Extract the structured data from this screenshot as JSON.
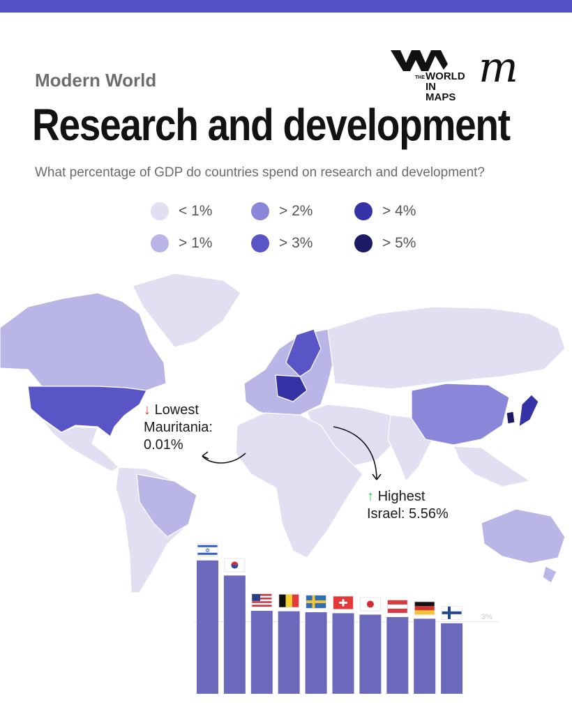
{
  "header": {
    "kicker": "Modern World",
    "title": "Research and development",
    "question": "What percentage of GDP do countries spend on research and development?",
    "logo_small": "THE",
    "logo_line1": "WORLD",
    "logo_line2": "IN MAPS",
    "logo_script": "m"
  },
  "legend": [
    {
      "label": "< 1%",
      "color": "#e1e0f3"
    },
    {
      "label": "> 1%",
      "color": "#b9b6e7"
    },
    {
      "label": "> 2%",
      "color": "#8a86da"
    },
    {
      "label": "> 3%",
      "color": "#5a55c7"
    },
    {
      "label": "> 4%",
      "color": "#3532a6"
    },
    {
      "label": "> 5%",
      "color": "#1c1a63"
    }
  ],
  "annotations": {
    "lowest_arrow": "↓",
    "lowest_title": "Lowest",
    "lowest_value": "Mauritania: 0.01%",
    "lowest_country": "Mauritania:",
    "lowest_pct": "0.01%",
    "highest_arrow": "↑",
    "highest_title": "Highest",
    "highest_value": "Israel: 5.56%"
  },
  "colors": {
    "accent": "#5350c4",
    "land_default": "#e1e0f3",
    "bar": "#6b69bb"
  },
  "chart_data": {
    "type": "bar",
    "reference_line_label": "3%",
    "reference_value": 3.0,
    "categories": [
      "Israel",
      "South Korea",
      "USA",
      "Belgium",
      "Sweden",
      "Switzerland",
      "Japan",
      "Austria",
      "Germany",
      "Finland"
    ],
    "flags": [
      "israel-flag",
      "south-korea-flag",
      "usa-flag",
      "belgium-flag",
      "sweden-flag",
      "switzerland-flag",
      "japan-flag",
      "austria-flag",
      "germany-flag",
      "finland-flag"
    ],
    "values": [
      5.56,
      4.93,
      3.46,
      3.44,
      3.4,
      3.36,
      3.3,
      3.2,
      3.13,
      2.94
    ]
  }
}
